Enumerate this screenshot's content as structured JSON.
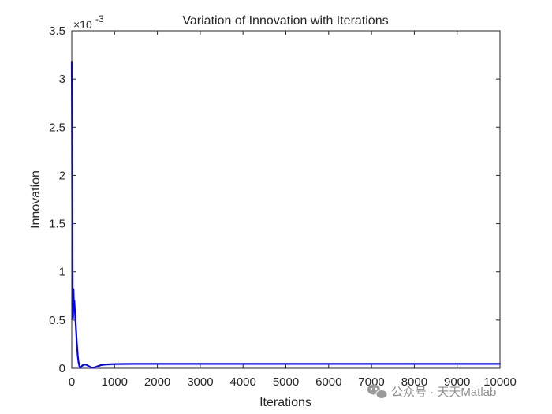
{
  "chart_data": {
    "type": "line",
    "title": "Variation of Innovation with Iterations",
    "xlabel": "Iterations",
    "ylabel": "Innovation",
    "xlim": [
      0,
      10000
    ],
    "ylim": [
      0,
      0.0035
    ],
    "y_exponent_label": "×10",
    "y_exponent_power": "-3",
    "x_ticks": [
      "0",
      "1000",
      "2000",
      "3000",
      "4000",
      "5000",
      "6000",
      "7000",
      "8000",
      "9000",
      "10000"
    ],
    "y_ticks": [
      "0",
      "0.5",
      "1",
      "1.5",
      "2",
      "2.5",
      "3",
      "3.5"
    ],
    "grid": false,
    "series": [
      {
        "color": "#0000ff",
        "x": [
          0,
          5,
          10,
          20,
          30,
          40,
          50,
          60,
          70,
          80,
          100,
          120,
          140,
          160,
          180,
          200,
          250,
          300,
          350,
          400,
          450,
          500,
          600,
          700,
          800,
          900,
          1000,
          1200,
          1500,
          2000,
          3000,
          4000,
          5000,
          6000,
          7000,
          8000,
          9000,
          10000
        ],
        "y": [
          0.00318,
          0.0026,
          0.0018,
          0.0008,
          0.00052,
          0.00082,
          0.00065,
          0.0007,
          0.00062,
          0.00055,
          0.0004,
          0.00025,
          0.00013,
          6e-05,
          2e-05,
          5e-06,
          3e-05,
          4e-05,
          3.5e-05,
          2e-05,
          1e-05,
          5e-06,
          2e-05,
          3.5e-05,
          4e-05,
          4.2e-05,
          4.4e-05,
          4.5e-05,
          4.6e-05,
          4.6e-05,
          4.6e-05,
          4.6e-05,
          4.6e-05,
          4.6e-05,
          4.6e-05,
          4.6e-05,
          4.6e-05,
          4.6e-05
        ]
      }
    ],
    "watermark": "公众号 · 天天Matlab",
    "colors": {
      "axes": "#262626",
      "line": "#0000ff",
      "watermark": "#8f8f8f"
    }
  }
}
